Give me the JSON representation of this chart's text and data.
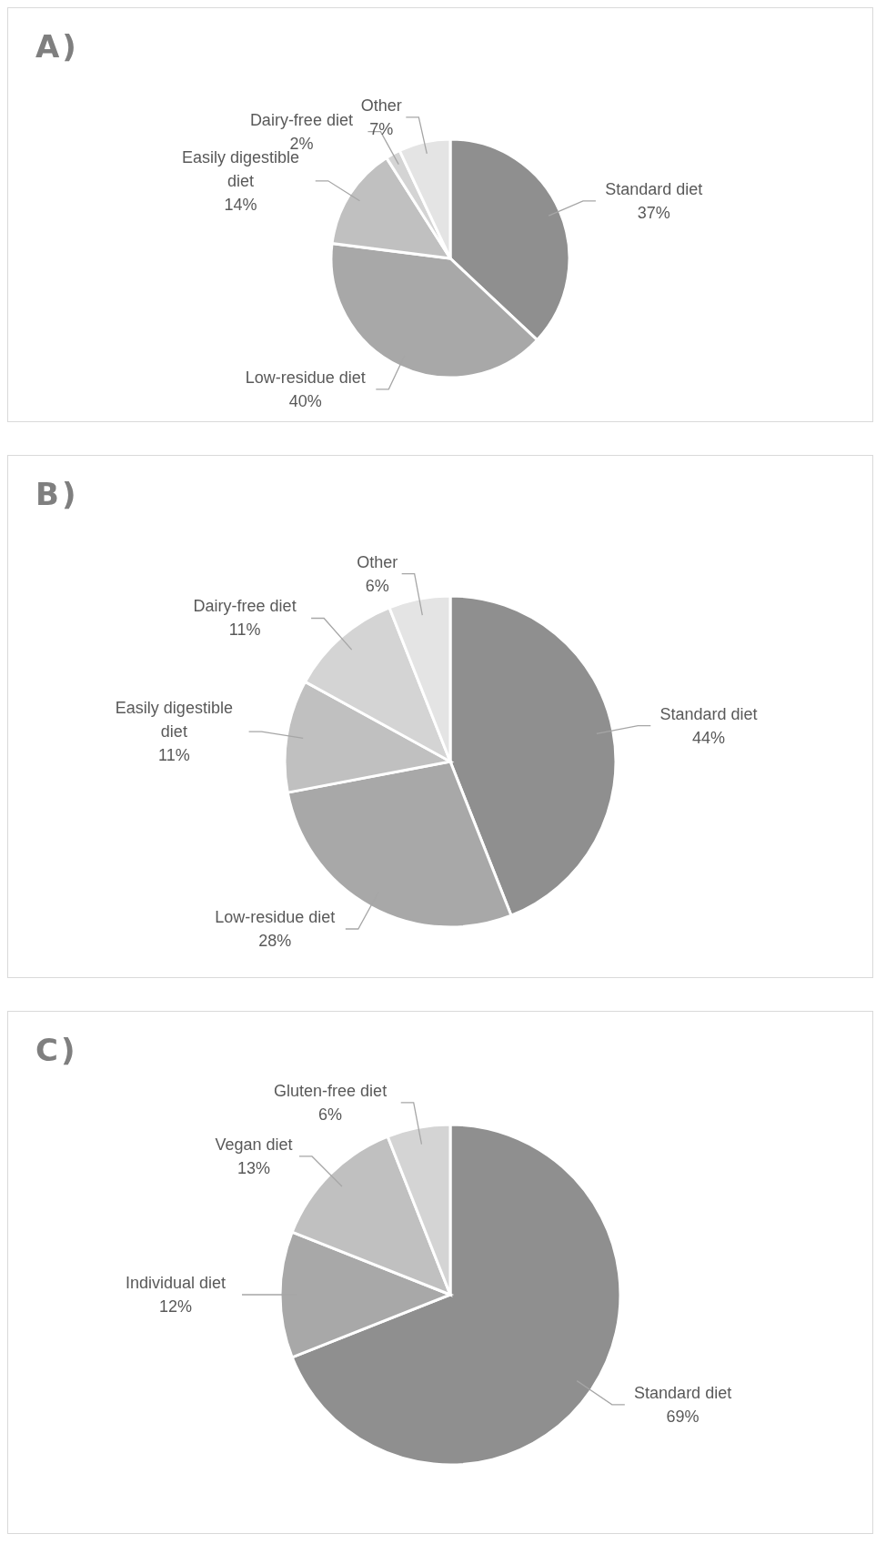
{
  "chart_data": [
    {
      "type": "pie",
      "title": "A)",
      "legend": false,
      "categories": [
        "Standard diet",
        "Low-residue diet",
        "Easily digestible diet",
        "Dairy-free diet",
        "Other"
      ],
      "values": [
        37,
        40,
        14,
        2,
        7
      ],
      "value_labels": [
        "37%",
        "40%",
        "14%",
        "2%",
        "7%"
      ],
      "colors": [
        "#8f8f8f",
        "#a8a8a8",
        "#c0c0c0",
        "#d4d4d4",
        "#e4e4e4"
      ]
    },
    {
      "type": "pie",
      "title": "B)",
      "legend": false,
      "categories": [
        "Standard diet",
        "Low-residue diet",
        "Easily digestible diet",
        "Dairy-free diet",
        "Other"
      ],
      "values": [
        44,
        28,
        11,
        11,
        6
      ],
      "value_labels": [
        "44%",
        "28%",
        "11%",
        "11%",
        "6%"
      ],
      "colors": [
        "#8f8f8f",
        "#a8a8a8",
        "#c0c0c0",
        "#d4d4d4",
        "#e4e4e4"
      ]
    },
    {
      "type": "pie",
      "title": "C)",
      "legend": false,
      "categories": [
        "Standard diet",
        "Individual diet",
        "Vegan diet",
        "Gluten-free diet"
      ],
      "values": [
        69,
        12,
        13,
        6
      ],
      "value_labels": [
        "69%",
        "12%",
        "13%",
        "6%"
      ],
      "colors": [
        "#8f8f8f",
        "#a8a8a8",
        "#c0c0c0",
        "#d4d4d4"
      ]
    }
  ]
}
